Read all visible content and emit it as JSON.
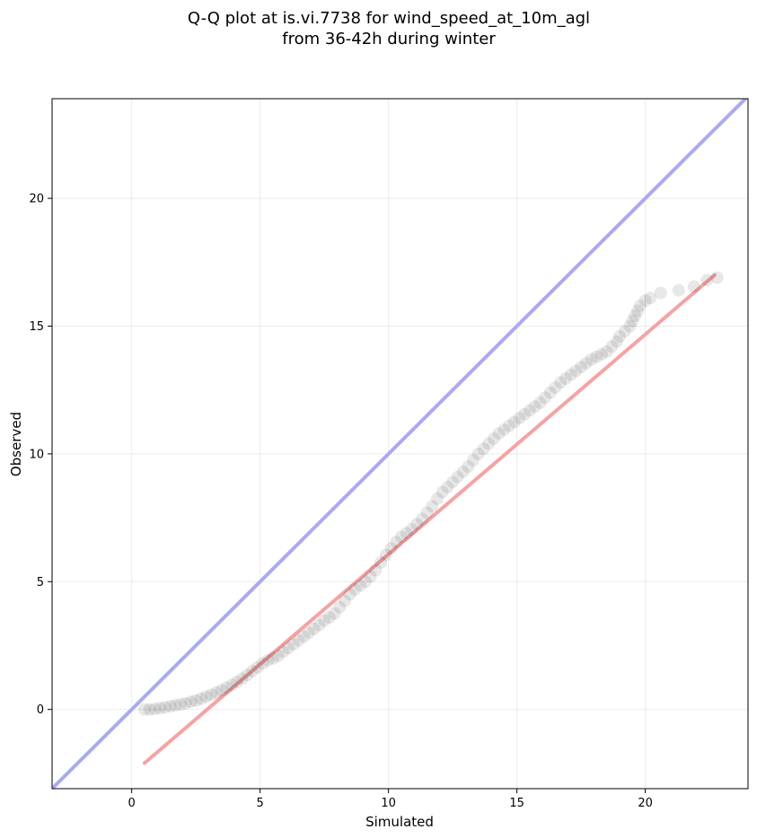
{
  "chart_data": {
    "type": "scatter",
    "title_line1": "Q-Q plot at is.vi.7738 for wind_speed_at_10m_agl",
    "title_line2": "from 36-42h during winter",
    "xlabel": "Simulated",
    "ylabel": "Observed",
    "xlim": [
      -3.1,
      24
    ],
    "ylim": [
      -3.1,
      23.9
    ],
    "xticks": [
      0,
      5,
      10,
      15,
      20
    ],
    "yticks": [
      0,
      5,
      10,
      15,
      20
    ],
    "grid": true,
    "colors": {
      "points": "#000000",
      "reference_line": "#aaaaf0",
      "fit_line": "#f5a3a3",
      "grid": "#ebebeb"
    },
    "reference_line": {
      "x": [
        -3.1,
        24
      ],
      "y": [
        -3.1,
        24
      ]
    },
    "fit_line": {
      "x": [
        0.5,
        22.7
      ],
      "y": [
        -2.1,
        17.0
      ]
    },
    "quantiles": {
      "x": [
        0.5,
        0.7,
        0.9,
        1.1,
        1.3,
        1.5,
        1.7,
        1.9,
        2.1,
        2.3,
        2.5,
        2.7,
        2.9,
        3.1,
        3.3,
        3.5,
        3.7,
        3.9,
        4.1,
        4.3,
        4.5,
        4.7,
        4.9,
        5.1,
        5.3,
        5.5,
        5.7,
        5.9,
        6.1,
        6.3,
        6.5,
        6.7,
        6.9,
        7.1,
        7.3,
        7.5,
        7.7,
        7.9,
        8.1,
        8.3,
        8.5,
        8.7,
        8.9,
        9.1,
        9.3,
        9.5,
        9.7,
        9.9,
        10.1,
        10.3,
        10.5,
        10.7,
        10.9,
        11.1,
        11.3,
        11.5,
        11.7,
        11.9,
        12.1,
        12.3,
        12.5,
        12.7,
        12.9,
        13.1,
        13.3,
        13.5,
        13.7,
        13.9,
        14.1,
        14.3,
        14.5,
        14.7,
        14.9,
        15.1,
        15.3,
        15.5,
        15.7,
        15.9,
        16.1,
        16.3,
        16.5,
        16.7,
        16.9,
        17.1,
        17.3,
        17.5,
        17.7,
        17.9,
        18.1,
        18.3,
        18.5,
        18.7,
        18.9,
        19.0,
        19.2,
        19.4,
        19.5,
        19.6,
        19.7,
        19.8,
        20.0,
        20.2,
        20.6,
        21.3,
        21.9,
        22.4,
        22.8
      ],
      "y": [
        0.0,
        0.0,
        0.02,
        0.05,
        0.08,
        0.12,
        0.16,
        0.2,
        0.24,
        0.3,
        0.35,
        0.42,
        0.5,
        0.58,
        0.66,
        0.75,
        0.85,
        0.96,
        1.08,
        1.2,
        1.35,
        1.5,
        1.65,
        1.8,
        1.92,
        2.0,
        2.1,
        2.25,
        2.4,
        2.55,
        2.7,
        2.85,
        3.0,
        3.15,
        3.3,
        3.48,
        3.6,
        3.75,
        4.0,
        4.25,
        4.5,
        4.7,
        4.85,
        5.0,
        5.2,
        5.45,
        5.75,
        6.05,
        6.3,
        6.55,
        6.75,
        6.9,
        7.05,
        7.25,
        7.45,
        7.7,
        7.95,
        8.25,
        8.5,
        8.7,
        8.9,
        9.1,
        9.3,
        9.5,
        9.75,
        10.0,
        10.2,
        10.4,
        10.6,
        10.8,
        10.95,
        11.1,
        11.25,
        11.4,
        11.55,
        11.7,
        11.85,
        12.0,
        12.2,
        12.4,
        12.6,
        12.8,
        12.95,
        13.1,
        13.25,
        13.4,
        13.55,
        13.7,
        13.8,
        13.9,
        14.0,
        14.2,
        14.4,
        14.6,
        14.8,
        15.0,
        15.2,
        15.4,
        15.6,
        15.8,
        16.0,
        16.1,
        16.3,
        16.4,
        16.55,
        16.8,
        16.9
      ]
    }
  }
}
